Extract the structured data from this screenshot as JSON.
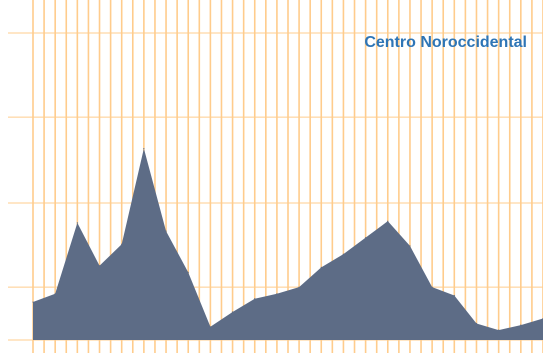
{
  "chart_data": {
    "type": "area",
    "title": "Centro Noroccidental",
    "xlabel": "",
    "ylabel": "",
    "x_count": 24,
    "values": [
      7,
      12,
      55,
      29,
      42,
      100,
      50,
      25,
      -8,
      1,
      9,
      12,
      16,
      28,
      36,
      46,
      56,
      41,
      16,
      11,
      -6,
      -10,
      -7,
      -3
    ],
    "ylim": [
      -16,
      190
    ],
    "y_gridlines": [
      -16,
      16,
      67,
      119,
      170
    ],
    "grid": true,
    "legend": "none",
    "colors": {
      "area_fill": "#5d6c86",
      "grid_line": "#ffcc8c",
      "title": "#2e75b6",
      "background": "#ffffff"
    }
  }
}
